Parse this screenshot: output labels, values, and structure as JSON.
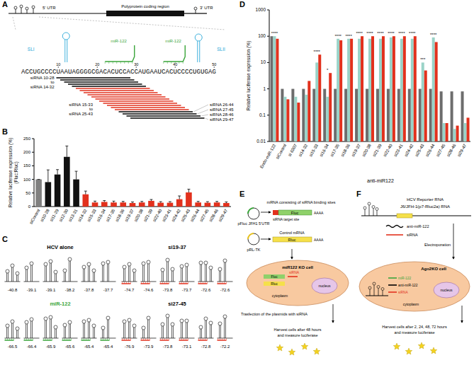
{
  "panel_letters": [
    "A",
    "B",
    "C",
    "D",
    "E",
    "F"
  ],
  "genome": {
    "utr5": "5' UTR",
    "coding": "Polyprotein coding region",
    "utr3": "3' UTR",
    "sl1": "SLI",
    "sl2": "SLII",
    "mir_sites": [
      "miR-122",
      "miR-122"
    ],
    "sequence": "ACCUGCCCCUAAUAGGGGCGACACUCCACCAUGAAUCACUCCCCUGUGAG",
    "positions": [
      10,
      20,
      30,
      40,
      50
    ],
    "sirnas": [
      {
        "start": 10,
        "end": 28,
        "color": "#000000"
      },
      {
        "start": 11,
        "end": 29,
        "color": "#000000"
      },
      {
        "start": 12,
        "end": 30,
        "color": "#000000"
      },
      {
        "start": 13,
        "end": 31,
        "color": "#000000"
      },
      {
        "start": 14,
        "end": 32,
        "color": "#000000"
      },
      {
        "start": 15,
        "end": 33,
        "color": "#e2311d"
      },
      {
        "start": 16,
        "end": 34,
        "color": "#e2311d"
      },
      {
        "start": 17,
        "end": 35,
        "color": "#e2311d"
      },
      {
        "start": 18,
        "end": 36,
        "color": "#e2311d"
      },
      {
        "start": 19,
        "end": 37,
        "color": "#e2311d"
      },
      {
        "start": 20,
        "end": 38,
        "color": "#e2311d"
      },
      {
        "start": 21,
        "end": 39,
        "color": "#e2311d"
      },
      {
        "start": 22,
        "end": 40,
        "color": "#e2311d"
      },
      {
        "start": 23,
        "end": 41,
        "color": "#e2311d"
      },
      {
        "start": 24,
        "end": 42,
        "color": "#e2311d"
      },
      {
        "start": 25,
        "end": 43,
        "color": "#e2311d"
      },
      {
        "start": 26,
        "end": 44,
        "color": "#000000"
      },
      {
        "start": 27,
        "end": 45,
        "color": "#000000"
      },
      {
        "start": 28,
        "end": 46,
        "color": "#000000"
      },
      {
        "start": 29,
        "end": 47,
        "color": "#000000"
      }
    ],
    "sirna_labels": [
      [
        "siRNA 10-28",
        "to",
        "siRNA 14-32"
      ],
      [
        "siRNA 15-33",
        "to",
        "siRNA 25-43"
      ],
      [
        "siRNA 26-44"
      ],
      [
        "siRNA 27-45"
      ],
      [
        "siRNA 28-46"
      ],
      [
        "siRNA 29-47"
      ]
    ]
  },
  "chart_data": [
    {
      "type": "bar",
      "y_label": [
        "Relative luciferase expression (%)",
        "(Fluc:Rluc)"
      ],
      "categories": [
        "siControl",
        "si10-28",
        "si11-29",
        "si12-30",
        "si13-31",
        "si14-32",
        "si15-33",
        "si16-34",
        "si17-35",
        "si18-36",
        "si19-37",
        "si20-38",
        "si21-39",
        "si22-40",
        "si23-41",
        "si24-42",
        "si25-43",
        "si26-44",
        "si27-45",
        "si28-46",
        "si29-47"
      ],
      "values": [
        100,
        90,
        118,
        183,
        100,
        45,
        15,
        17,
        15,
        15,
        13,
        15,
        21,
        14,
        14,
        27,
        52,
        15,
        14,
        15,
        13
      ],
      "errors": [
        0,
        45,
        18,
        40,
        30,
        12,
        5,
        5,
        5,
        4,
        4,
        4,
        5,
        4,
        4,
        12,
        12,
        4,
        4,
        4,
        4
      ],
      "colors": [
        "#808080",
        "#111111",
        "#111111",
        "#111111",
        "#111111",
        "#e2311d",
        "#e2311d",
        "#e2311d",
        "#e2311d",
        "#e2311d",
        "#e2311d",
        "#e2311d",
        "#e2311d",
        "#e2311d",
        "#e2311d",
        "#e2311d",
        "#e2311d",
        "#e2311d",
        "#e2311d",
        "#e2311d",
        "#e2311d"
      ],
      "ylim": [
        0,
        250
      ],
      "yticks": [
        0,
        50,
        100,
        150,
        200,
        250
      ]
    },
    {
      "type": "bar",
      "log": "y",
      "y_label": "Relative luciferase expression (%)",
      "x_label": "anti-miR122",
      "categories": [
        "Endo-miR-122",
        "siControl",
        "si 6307",
        "si14-32",
        "si15-33",
        "si16-34",
        "si17-35",
        "si18-36",
        "si19-37",
        "si20-38",
        "si21-39",
        "si22-40",
        "si23-41",
        "si24-42",
        "si25-43",
        "si26-44",
        "si27-45",
        "si28-46",
        "si29-47"
      ],
      "series": [
        {
          "color": "#6d6d6d",
          "values": [
            100,
            1,
            1,
            1,
            1,
            1,
            1,
            1,
            1,
            1,
            1,
            1,
            1,
            1,
            1,
            1,
            0.8,
            0.8,
            0.8
          ]
        },
        {
          "color": "#9ad3c8",
          "values": [
            100,
            0.5,
            0.5,
            0.6,
            10,
            0.5,
            80,
            80,
            80,
            80,
            80,
            90,
            80,
            80,
            10,
            90,
            0.05,
            0.03,
            0.05
          ]
        },
        {
          "color": "#e2311d",
          "values": [
            80,
            0.4,
            0.3,
            2,
            20,
            4,
            70,
            80,
            100,
            100,
            100,
            100,
            100,
            100,
            5,
            60,
            0.05,
            0.04,
            0.08
          ]
        }
      ],
      "significance": [
        "****",
        null,
        null,
        null,
        "****",
        "*",
        "****",
        "****",
        "****",
        "****",
        "****",
        "****",
        "****",
        "****",
        "***",
        "****",
        null,
        null,
        null
      ],
      "ylim": [
        0.01,
        1000
      ],
      "yticks": [
        0.01,
        0.1,
        1,
        10,
        100,
        1000
      ]
    }
  ],
  "structures": [
    {
      "title": "HCV alone",
      "energies": [
        -40.8,
        -39.1,
        -39.1,
        -38.2,
        -37.8,
        -37.7
      ]
    },
    {
      "title": "miR-122",
      "energies": [
        -66.5,
        -66.4,
        -65.9,
        -65.6,
        -65.4,
        -65.4
      ]
    },
    {
      "title": "si19-37",
      "energies": [
        -74.7,
        -74.6,
        -73.8,
        -73.7,
        -72.6,
        -72.6
      ]
    },
    {
      "title": "si27-45",
      "energies": [
        -76.9,
        -73.9,
        -73.8,
        -73.1,
        -72.8,
        -72.2
      ]
    }
  ],
  "assay_e": {
    "mrna_note": "mRNA consisting of siRNA binding sites",
    "plasmid1": "pFluc JFH1 5'UTR",
    "target": "siRNA target site",
    "fluc": "Fluc",
    "polya": "AAAA",
    "plasmid2": "pRL-TK",
    "control": "Control mRNA",
    "rluc": "Rluc",
    "polya2": "AAAA",
    "cell": "miR122 KO cell",
    "cell_fluc": "Fluc",
    "cell_rluc": "Rluc",
    "sirna": "siRNA",
    "cytoplasm": "cytoplasm",
    "nucleus": "nucleus",
    "transfection": "Trasfection of the plasmids with siRNA",
    "harvest": [
      "Harvest cells after 48 hours",
      "and measure luciferase"
    ]
  },
  "assay_f": {
    "title": "HCV Reporter RNA",
    "construct": "J6/JFH-1(p7-Rluc2a) RNA",
    "anti": "anti-miR-122",
    "sirna": "siRNA",
    "electroporation": "Electroporation",
    "cell": "Ago2KO cell",
    "cell_mir": "miR-122",
    "cell_anti": "anti-miR-122",
    "cell_sirna": "siRNA",
    "nucleus": "nucleus",
    "cytoplasm": "cytoplasm",
    "harvest": [
      "Harvest cells after 2, 24, 48, 72 hours",
      "and measure luciferase"
    ]
  }
}
